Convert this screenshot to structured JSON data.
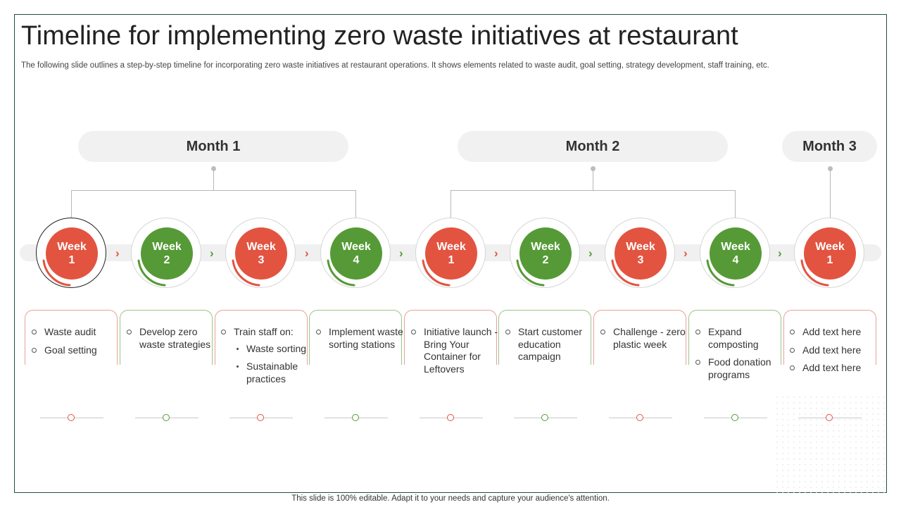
{
  "slide": {
    "title": "Timeline for implementing zero waste initiatives at restaurant",
    "subtitle": "The following slide outlines a step-by-step timeline for incorporating zero waste initiatives at restaurant operations. It shows elements related to waste audit, goal setting, strategy development, staff training, etc.",
    "footer": "This slide is 100% editable. Adapt it to your needs and capture your audience's attention."
  },
  "months": [
    {
      "label": "Month 1"
    },
    {
      "label": "Month 2"
    },
    {
      "label": "Month 3"
    }
  ],
  "weeks": [
    {
      "label": "Week",
      "num": "1",
      "color": "#e25440"
    },
    {
      "label": "Week",
      "num": "2",
      "color": "#559a36"
    },
    {
      "label": "Week",
      "num": "3",
      "color": "#e25440"
    },
    {
      "label": "Week",
      "num": "4",
      "color": "#559a36"
    },
    {
      "label": "Week",
      "num": "1",
      "color": "#e25440"
    },
    {
      "label": "Week",
      "num": "2",
      "color": "#559a36"
    },
    {
      "label": "Week",
      "num": "3",
      "color": "#e25440"
    },
    {
      "label": "Week",
      "num": "4",
      "color": "#559a36"
    },
    {
      "label": "Week",
      "num": "1",
      "color": "#e25440"
    }
  ],
  "cards": [
    {
      "items": [
        "Waste audit",
        "Goal setting"
      ]
    },
    {
      "items": [
        "Develop zero waste strategies"
      ]
    },
    {
      "items": [
        "Train staff on:"
      ],
      "subitems": [
        "Waste sorting",
        "Sustainable practices"
      ]
    },
    {
      "items": [
        "Implement waste sorting stations"
      ]
    },
    {
      "items": [
        "Initiative launch - Bring Your Container for Leftovers"
      ]
    },
    {
      "items": [
        "Start customer education campaign"
      ]
    },
    {
      "items": [
        "Challenge - zero plastic week"
      ]
    },
    {
      "items": [
        "Expand composting",
        "Food donation programs"
      ]
    },
    {
      "items": [
        "Add text here",
        "Add text here",
        "Add text here"
      ]
    }
  ],
  "colors": {
    "red": "#e25440",
    "green": "#559a36",
    "frame": "#1f4e47"
  }
}
